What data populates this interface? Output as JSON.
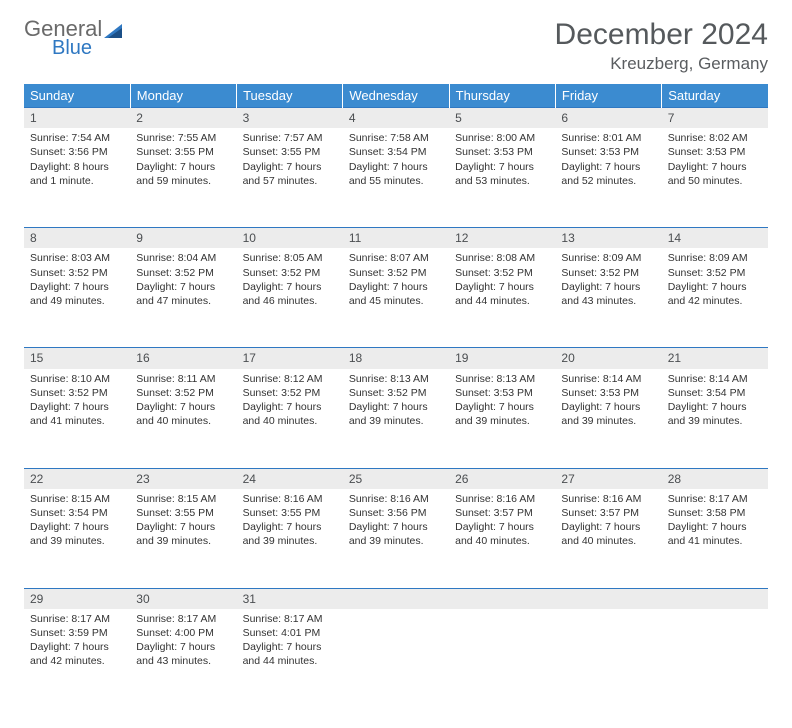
{
  "logo": {
    "line1": "General",
    "line2": "Blue"
  },
  "title": "December 2024",
  "location": "Kreuzberg, Germany",
  "colors": {
    "header_bg": "#3b8bd0",
    "daynum_bg": "#ececec",
    "rule": "#2f78c2",
    "logo_gray": "#6a6a6a",
    "logo_blue": "#2f78c2"
  },
  "day_headers": [
    "Sunday",
    "Monday",
    "Tuesday",
    "Wednesday",
    "Thursday",
    "Friday",
    "Saturday"
  ],
  "weeks": [
    [
      {
        "num": "1",
        "sunrise": "Sunrise: 7:54 AM",
        "sunset": "Sunset: 3:56 PM",
        "daylight1": "Daylight: 8 hours",
        "daylight2": "and 1 minute."
      },
      {
        "num": "2",
        "sunrise": "Sunrise: 7:55 AM",
        "sunset": "Sunset: 3:55 PM",
        "daylight1": "Daylight: 7 hours",
        "daylight2": "and 59 minutes."
      },
      {
        "num": "3",
        "sunrise": "Sunrise: 7:57 AM",
        "sunset": "Sunset: 3:55 PM",
        "daylight1": "Daylight: 7 hours",
        "daylight2": "and 57 minutes."
      },
      {
        "num": "4",
        "sunrise": "Sunrise: 7:58 AM",
        "sunset": "Sunset: 3:54 PM",
        "daylight1": "Daylight: 7 hours",
        "daylight2": "and 55 minutes."
      },
      {
        "num": "5",
        "sunrise": "Sunrise: 8:00 AM",
        "sunset": "Sunset: 3:53 PM",
        "daylight1": "Daylight: 7 hours",
        "daylight2": "and 53 minutes."
      },
      {
        "num": "6",
        "sunrise": "Sunrise: 8:01 AM",
        "sunset": "Sunset: 3:53 PM",
        "daylight1": "Daylight: 7 hours",
        "daylight2": "and 52 minutes."
      },
      {
        "num": "7",
        "sunrise": "Sunrise: 8:02 AM",
        "sunset": "Sunset: 3:53 PM",
        "daylight1": "Daylight: 7 hours",
        "daylight2": "and 50 minutes."
      }
    ],
    [
      {
        "num": "8",
        "sunrise": "Sunrise: 8:03 AM",
        "sunset": "Sunset: 3:52 PM",
        "daylight1": "Daylight: 7 hours",
        "daylight2": "and 49 minutes."
      },
      {
        "num": "9",
        "sunrise": "Sunrise: 8:04 AM",
        "sunset": "Sunset: 3:52 PM",
        "daylight1": "Daylight: 7 hours",
        "daylight2": "and 47 minutes."
      },
      {
        "num": "10",
        "sunrise": "Sunrise: 8:05 AM",
        "sunset": "Sunset: 3:52 PM",
        "daylight1": "Daylight: 7 hours",
        "daylight2": "and 46 minutes."
      },
      {
        "num": "11",
        "sunrise": "Sunrise: 8:07 AM",
        "sunset": "Sunset: 3:52 PM",
        "daylight1": "Daylight: 7 hours",
        "daylight2": "and 45 minutes."
      },
      {
        "num": "12",
        "sunrise": "Sunrise: 8:08 AM",
        "sunset": "Sunset: 3:52 PM",
        "daylight1": "Daylight: 7 hours",
        "daylight2": "and 44 minutes."
      },
      {
        "num": "13",
        "sunrise": "Sunrise: 8:09 AM",
        "sunset": "Sunset: 3:52 PM",
        "daylight1": "Daylight: 7 hours",
        "daylight2": "and 43 minutes."
      },
      {
        "num": "14",
        "sunrise": "Sunrise: 8:09 AM",
        "sunset": "Sunset: 3:52 PM",
        "daylight1": "Daylight: 7 hours",
        "daylight2": "and 42 minutes."
      }
    ],
    [
      {
        "num": "15",
        "sunrise": "Sunrise: 8:10 AM",
        "sunset": "Sunset: 3:52 PM",
        "daylight1": "Daylight: 7 hours",
        "daylight2": "and 41 minutes."
      },
      {
        "num": "16",
        "sunrise": "Sunrise: 8:11 AM",
        "sunset": "Sunset: 3:52 PM",
        "daylight1": "Daylight: 7 hours",
        "daylight2": "and 40 minutes."
      },
      {
        "num": "17",
        "sunrise": "Sunrise: 8:12 AM",
        "sunset": "Sunset: 3:52 PM",
        "daylight1": "Daylight: 7 hours",
        "daylight2": "and 40 minutes."
      },
      {
        "num": "18",
        "sunrise": "Sunrise: 8:13 AM",
        "sunset": "Sunset: 3:52 PM",
        "daylight1": "Daylight: 7 hours",
        "daylight2": "and 39 minutes."
      },
      {
        "num": "19",
        "sunrise": "Sunrise: 8:13 AM",
        "sunset": "Sunset: 3:53 PM",
        "daylight1": "Daylight: 7 hours",
        "daylight2": "and 39 minutes."
      },
      {
        "num": "20",
        "sunrise": "Sunrise: 8:14 AM",
        "sunset": "Sunset: 3:53 PM",
        "daylight1": "Daylight: 7 hours",
        "daylight2": "and 39 minutes."
      },
      {
        "num": "21",
        "sunrise": "Sunrise: 8:14 AM",
        "sunset": "Sunset: 3:54 PM",
        "daylight1": "Daylight: 7 hours",
        "daylight2": "and 39 minutes."
      }
    ],
    [
      {
        "num": "22",
        "sunrise": "Sunrise: 8:15 AM",
        "sunset": "Sunset: 3:54 PM",
        "daylight1": "Daylight: 7 hours",
        "daylight2": "and 39 minutes."
      },
      {
        "num": "23",
        "sunrise": "Sunrise: 8:15 AM",
        "sunset": "Sunset: 3:55 PM",
        "daylight1": "Daylight: 7 hours",
        "daylight2": "and 39 minutes."
      },
      {
        "num": "24",
        "sunrise": "Sunrise: 8:16 AM",
        "sunset": "Sunset: 3:55 PM",
        "daylight1": "Daylight: 7 hours",
        "daylight2": "and 39 minutes."
      },
      {
        "num": "25",
        "sunrise": "Sunrise: 8:16 AM",
        "sunset": "Sunset: 3:56 PM",
        "daylight1": "Daylight: 7 hours",
        "daylight2": "and 39 minutes."
      },
      {
        "num": "26",
        "sunrise": "Sunrise: 8:16 AM",
        "sunset": "Sunset: 3:57 PM",
        "daylight1": "Daylight: 7 hours",
        "daylight2": "and 40 minutes."
      },
      {
        "num": "27",
        "sunrise": "Sunrise: 8:16 AM",
        "sunset": "Sunset: 3:57 PM",
        "daylight1": "Daylight: 7 hours",
        "daylight2": "and 40 minutes."
      },
      {
        "num": "28",
        "sunrise": "Sunrise: 8:17 AM",
        "sunset": "Sunset: 3:58 PM",
        "daylight1": "Daylight: 7 hours",
        "daylight2": "and 41 minutes."
      }
    ],
    [
      {
        "num": "29",
        "sunrise": "Sunrise: 8:17 AM",
        "sunset": "Sunset: 3:59 PM",
        "daylight1": "Daylight: 7 hours",
        "daylight2": "and 42 minutes."
      },
      {
        "num": "30",
        "sunrise": "Sunrise: 8:17 AM",
        "sunset": "Sunset: 4:00 PM",
        "daylight1": "Daylight: 7 hours",
        "daylight2": "and 43 minutes."
      },
      {
        "num": "31",
        "sunrise": "Sunrise: 8:17 AM",
        "sunset": "Sunset: 4:01 PM",
        "daylight1": "Daylight: 7 hours",
        "daylight2": "and 44 minutes."
      },
      null,
      null,
      null,
      null
    ]
  ]
}
